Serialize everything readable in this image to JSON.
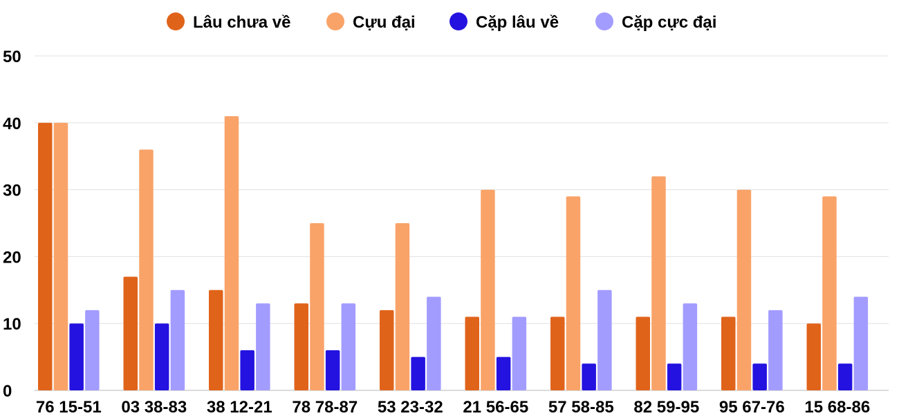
{
  "chart_data": {
    "type": "bar",
    "categories": [
      "76 15-51",
      "03 38-83",
      "38 12-21",
      "78 78-87",
      "53 23-32",
      "21 56-65",
      "57 58-85",
      "82 59-95",
      "95 67-76",
      "15 68-86"
    ],
    "series": [
      {
        "name": "Lâu chưa về",
        "color": "#e0631a",
        "values": [
          40,
          17,
          15,
          13,
          12,
          11,
          11,
          11,
          11,
          10
        ]
      },
      {
        "name": "Cựu đại",
        "color": "#f9a369",
        "values": [
          40,
          36,
          41,
          25,
          25,
          30,
          29,
          32,
          30,
          29
        ]
      },
      {
        "name": "Cặp lâu về",
        "color": "#2412e0",
        "values": [
          10,
          10,
          6,
          6,
          5,
          5,
          4,
          4,
          4,
          4
        ]
      },
      {
        "name": "Cặp cực đại",
        "color": "#a39cff",
        "values": [
          12,
          15,
          13,
          13,
          14,
          11,
          15,
          13,
          12,
          14
        ]
      }
    ],
    "yticks": [
      "0",
      "10",
      "20",
      "30",
      "40",
      "50"
    ],
    "ylim": [
      0,
      50
    ],
    "grid": true,
    "legend_position": "top-center",
    "title": "",
    "xlabel": "",
    "ylabel": ""
  }
}
